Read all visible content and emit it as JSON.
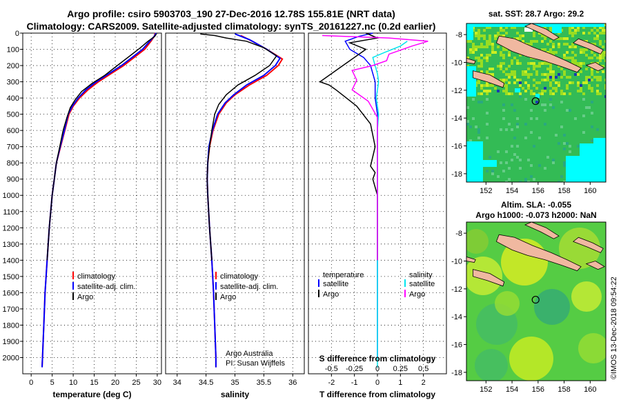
{
  "header": {
    "line1": "Argo profile: csiro 5903703_190 27-Dec-2016 12.78S 155.81E (NRT data)",
    "line2": "Climatology: CARS2009. Satellite-adjusted climatology: synTS_20161227.nc (0.2d earlier)"
  },
  "colors": {
    "climatology": "#ff0000",
    "satellite": "#0000ff",
    "argo": "#000000",
    "sat_salinity": "#00e5ee",
    "argo_salinity": "#ff00ff"
  },
  "chart_data": [
    {
      "type": "line",
      "xlabel": "temperature (deg C)",
      "xlim": [
        -2,
        31
      ],
      "xticks": [
        0,
        5,
        10,
        15,
        20,
        25,
        30
      ],
      "ylim": [
        2100,
        0
      ],
      "yticks": [
        0,
        100,
        200,
        300,
        400,
        500,
        600,
        700,
        800,
        900,
        1000,
        1100,
        1200,
        1300,
        1400,
        1500,
        1600,
        1700,
        1800,
        1900,
        2000
      ],
      "grid": true,
      "legend_position": "lower-center",
      "series": [
        {
          "name": "climatology",
          "color": "#ff0000",
          "width": 2,
          "points": [
            [
              29.5,
              0
            ],
            [
              29.3,
              20
            ],
            [
              28.5,
              50
            ],
            [
              27,
              100
            ],
            [
              24.5,
              150
            ],
            [
              22,
              200
            ],
            [
              19,
              250
            ],
            [
              16,
              300
            ],
            [
              13.5,
              350
            ],
            [
              11.5,
              400
            ],
            [
              10,
              450
            ],
            [
              9,
              500
            ],
            [
              8,
              600
            ],
            [
              7,
              700
            ],
            [
              6,
              800
            ],
            [
              5.5,
              900
            ],
            [
              5,
              1000
            ],
            [
              4.3,
              1200
            ],
            [
              3.8,
              1400
            ],
            [
              3.3,
              1600
            ],
            [
              3,
              1800
            ],
            [
              2.7,
              2000
            ],
            [
              2.6,
              2060
            ]
          ]
        },
        {
          "name": "satellite-adj. clim.",
          "color": "#0000ff",
          "width": 2,
          "points": [
            [
              29.7,
              0
            ],
            [
              29.3,
              20
            ],
            [
              28.2,
              50
            ],
            [
              26.5,
              100
            ],
            [
              24,
              150
            ],
            [
              21.5,
              200
            ],
            [
              18.5,
              250
            ],
            [
              15.5,
              300
            ],
            [
              13,
              350
            ],
            [
              11.2,
              400
            ],
            [
              9.8,
              450
            ],
            [
              8.8,
              500
            ],
            [
              7.9,
              600
            ],
            [
              6.9,
              700
            ],
            [
              6,
              800
            ],
            [
              5.5,
              900
            ],
            [
              5,
              1000
            ],
            [
              4.3,
              1200
            ],
            [
              3.8,
              1400
            ],
            [
              3.3,
              1600
            ],
            [
              3,
              1800
            ],
            [
              2.7,
              2000
            ],
            [
              2.6,
              2060
            ]
          ]
        },
        {
          "name": "Argo",
          "color": "#000000",
          "width": 1.5,
          "points": [
            [
              29.8,
              5
            ],
            [
              29.4,
              20
            ],
            [
              27.8,
              50
            ],
            [
              26,
              90
            ],
            [
              24,
              130
            ],
            [
              22,
              170
            ],
            [
              20,
              210
            ],
            [
              17.5,
              260
            ],
            [
              14.5,
              310
            ],
            [
              12,
              360
            ],
            [
              10.5,
              410
            ],
            [
              9.3,
              460
            ],
            [
              8.5,
              520
            ],
            [
              7.6,
              600
            ],
            [
              6.8,
              700
            ],
            [
              6,
              800
            ],
            [
              5.5,
              900
            ],
            [
              5,
              1000
            ],
            [
              4.3,
              1200
            ],
            [
              3.8,
              1400
            ]
          ]
        }
      ]
    },
    {
      "type": "line",
      "xlabel": "salinity",
      "xlim": [
        33.8,
        36.2
      ],
      "xticks": [
        34,
        34.5,
        35,
        35.5,
        36
      ],
      "ylim": [
        2100,
        0
      ],
      "grid": true,
      "legend_position": "lower-center",
      "annotations": [
        "Argo Australia",
        "PI: Susan Wijffels"
      ],
      "series": [
        {
          "name": "climatology",
          "color": "#ff0000",
          "width": 2,
          "points": [
            [
              35.1,
              15
            ],
            [
              35.3,
              50
            ],
            [
              35.55,
              100
            ],
            [
              35.82,
              160
            ],
            [
              35.75,
              200
            ],
            [
              35.55,
              260
            ],
            [
              35.25,
              320
            ],
            [
              35,
              380
            ],
            [
              34.85,
              430
            ],
            [
              34.72,
              500
            ],
            [
              34.62,
              600
            ],
            [
              34.56,
              700
            ],
            [
              34.53,
              800
            ],
            [
              34.52,
              900
            ],
            [
              34.53,
              1000
            ],
            [
              34.56,
              1200
            ],
            [
              34.6,
              1400
            ],
            [
              34.63,
              1600
            ],
            [
              34.65,
              1800
            ],
            [
              34.67,
              2000
            ],
            [
              34.67,
              2060
            ]
          ]
        },
        {
          "name": "satellite-adj. clim.",
          "color": "#0000ff",
          "width": 2,
          "points": [
            [
              35,
              5
            ],
            [
              35.25,
              40
            ],
            [
              35.55,
              100
            ],
            [
              35.78,
              155
            ],
            [
              35.7,
              200
            ],
            [
              35.5,
              260
            ],
            [
              35.2,
              320
            ],
            [
              34.98,
              380
            ],
            [
              34.83,
              430
            ],
            [
              34.7,
              500
            ],
            [
              34.61,
              600
            ],
            [
              34.55,
              700
            ],
            [
              34.53,
              800
            ],
            [
              34.52,
              900
            ],
            [
              34.53,
              1000
            ],
            [
              34.56,
              1200
            ],
            [
              34.6,
              1400
            ],
            [
              34.63,
              1600
            ],
            [
              34.65,
              1800
            ],
            [
              34.67,
              2000
            ],
            [
              34.67,
              2060
            ]
          ]
        },
        {
          "name": "Argo",
          "color": "#000000",
          "width": 1.5,
          "points": [
            [
              34.4,
              5
            ],
            [
              34.65,
              15
            ],
            [
              34.85,
              30
            ],
            [
              35.2,
              50
            ],
            [
              35.5,
              90
            ],
            [
              35.72,
              140
            ],
            [
              35.6,
              200
            ],
            [
              35.35,
              260
            ],
            [
              35.05,
              320
            ],
            [
              34.85,
              380
            ],
            [
              34.72,
              440
            ],
            [
              34.65,
              500
            ],
            [
              34.6,
              600
            ],
            [
              34.56,
              700
            ],
            [
              34.53,
              800
            ],
            [
              34.52,
              900
            ],
            [
              34.53,
              1000
            ],
            [
              34.56,
              1200
            ],
            [
              34.6,
              1400
            ]
          ]
        }
      ]
    },
    {
      "type": "line",
      "xlabel": "T difference from climatology",
      "xlim": [
        -3,
        3
      ],
      "xticks": [
        -2,
        -1,
        0,
        1,
        2
      ],
      "secondary_xlabel": "S difference from climatology",
      "secondary_xticks": [
        -0.5,
        -0.25,
        0,
        0.25,
        0.5
      ],
      "ylim": [
        2100,
        0
      ],
      "grid": true,
      "legend_groups": [
        [
          "temperature",
          "satellite",
          "Argo"
        ],
        [
          "salinity",
          "satellite",
          "Argo"
        ]
      ],
      "series": [
        {
          "name": "temperature satellite",
          "color": "#0000ff",
          "points": [
            [
              -0.2,
              0
            ],
            [
              -0.8,
              20
            ],
            [
              -1.4,
              50
            ],
            [
              -1.2,
              100
            ],
            [
              -0.6,
              150
            ],
            [
              -0.3,
              200
            ],
            [
              -0.1,
              300
            ],
            [
              -0.1,
              400
            ],
            [
              0,
              500
            ],
            [
              0,
              600
            ],
            [
              0,
              800
            ],
            [
              0,
              1000
            ],
            [
              0,
              2000
            ]
          ]
        },
        {
          "name": "temperature Argo",
          "color": "#000000",
          "points": [
            [
              -0.5,
              0
            ],
            [
              0,
              30
            ],
            [
              -1.2,
              60
            ],
            [
              -0.5,
              100
            ],
            [
              -1.5,
              200
            ],
            [
              -2.5,
              300
            ],
            [
              -2.1,
              320
            ],
            [
              -1.8,
              350
            ],
            [
              -0.9,
              450
            ],
            [
              -0.3,
              560
            ],
            [
              -0.1,
              700
            ],
            [
              -0.3,
              820
            ],
            [
              -0.1,
              860
            ],
            [
              -0.2,
              900
            ],
            [
              -0.1,
              950
            ],
            [
              0,
              1000
            ],
            [
              0,
              1100
            ],
            [
              0,
              1400
            ]
          ]
        },
        {
          "name": "salinity satellite",
          "color": "#00e5ee",
          "points": [
            [
              1.3,
              50
            ],
            [
              1,
              80
            ],
            [
              0.3,
              120
            ],
            [
              -0.2,
              150
            ],
            [
              0,
              250
            ],
            [
              0.05,
              300
            ],
            [
              -0.05,
              400
            ],
            [
              0.05,
              500
            ],
            [
              0,
              600
            ],
            [
              0,
              800
            ],
            [
              0,
              1000
            ],
            [
              0,
              2060
            ]
          ]
        },
        {
          "name": "salinity Argo",
          "color": "#ff00ff",
          "points": [
            [
              -2.4,
              15
            ],
            [
              0.5,
              30
            ],
            [
              2.2,
              50
            ],
            [
              1.5,
              80
            ],
            [
              0.5,
              130
            ],
            [
              0.4,
              170
            ],
            [
              -0.2,
              200
            ],
            [
              -1.1,
              230
            ],
            [
              -0.9,
              290
            ],
            [
              -1.1,
              350
            ],
            [
              -0.4,
              420
            ],
            [
              0,
              520
            ],
            [
              0,
              700
            ],
            [
              0,
              1000
            ],
            [
              0,
              1400
            ]
          ]
        }
      ]
    },
    {
      "type": "heatmap",
      "title": "sat. SST: 28.7 Argo: 29.2",
      "xlim": [
        150.5,
        161.2
      ],
      "ylim": [
        -18.6,
        -7.2
      ],
      "xticks": [
        152,
        154,
        156,
        158,
        160
      ],
      "yticks": [
        -8,
        -10,
        -12,
        -14,
        -16,
        -18
      ],
      "marker": {
        "lon": 155.81,
        "lat": -12.78
      }
    },
    {
      "type": "heatmap",
      "title_line1": "Altim. SLA: -0.055",
      "title_line2": "Argo h1000: -0.073 h2000: NaN",
      "xlim": [
        150.5,
        161.2
      ],
      "ylim": [
        -18.6,
        -7.2
      ],
      "xticks": [
        152,
        154,
        156,
        158,
        160
      ],
      "yticks": [
        -8,
        -10,
        -12,
        -14,
        -16,
        -18
      ],
      "marker": {
        "lon": 155.81,
        "lat": -12.78
      }
    }
  ],
  "footer": {
    "credit": "©IMOS 13-Dec-2018 09:54:22"
  }
}
